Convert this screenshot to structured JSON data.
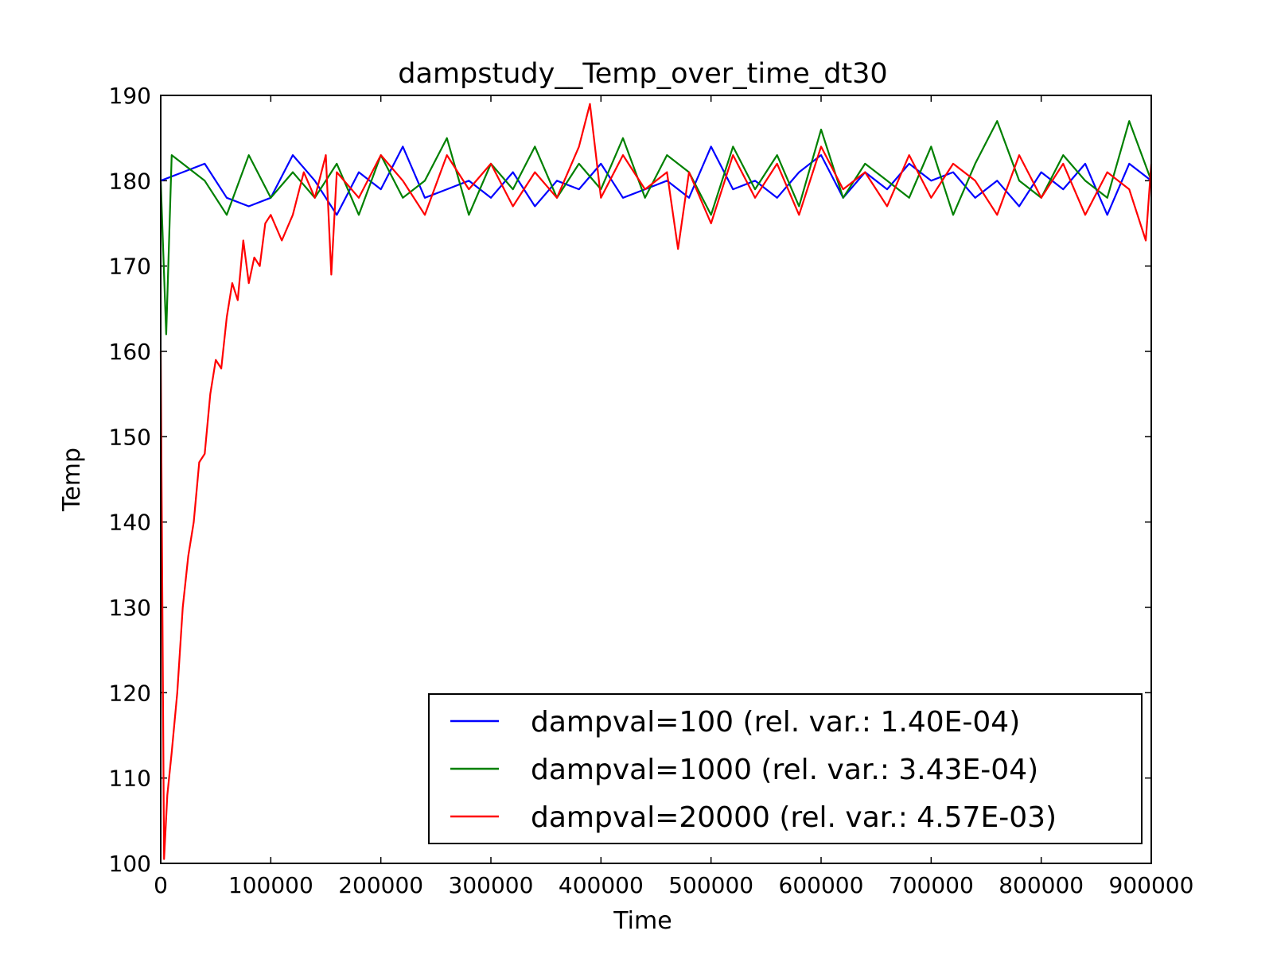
{
  "chart_data": {
    "type": "line",
    "title": "dampstudy__Temp_over_time_dt30",
    "xlabel": "Time",
    "ylabel": "Temp",
    "xlim": [
      0,
      900000
    ],
    "ylim": [
      100,
      190
    ],
    "xticks": [
      0,
      100000,
      200000,
      300000,
      400000,
      500000,
      600000,
      700000,
      800000,
      900000
    ],
    "xtick_labels": [
      "0",
      "100000",
      "200000",
      "300000",
      "400000",
      "500000",
      "600000",
      "700000",
      "800000",
      "900000"
    ],
    "yticks": [
      100,
      110,
      120,
      130,
      140,
      150,
      160,
      170,
      180,
      190
    ],
    "ytick_labels": [
      "100",
      "110",
      "120",
      "130",
      "140",
      "150",
      "160",
      "170",
      "180",
      "190"
    ],
    "grid": false,
    "legend_position": "lower-right",
    "series": [
      {
        "name": "dampval=100 (rel. var.: 1.40E-04)",
        "color": "#0000ff",
        "x": [
          0,
          20000,
          40000,
          60000,
          80000,
          100000,
          120000,
          140000,
          160000,
          180000,
          200000,
          220000,
          240000,
          260000,
          280000,
          300000,
          320000,
          340000,
          360000,
          380000,
          400000,
          420000,
          440000,
          460000,
          480000,
          500000,
          520000,
          540000,
          560000,
          580000,
          600000,
          620000,
          640000,
          660000,
          680000,
          700000,
          720000,
          740000,
          760000,
          780000,
          800000,
          820000,
          840000,
          860000,
          880000,
          900000
        ],
        "y": [
          180,
          181,
          182,
          178,
          177,
          178,
          183,
          180,
          176,
          181,
          179,
          184,
          178,
          179,
          180,
          178,
          181,
          177,
          180,
          179,
          182,
          178,
          179,
          180,
          178,
          184,
          179,
          180,
          178,
          181,
          183,
          178,
          181,
          179,
          182,
          180,
          181,
          178,
          180,
          177,
          181,
          179,
          182,
          176,
          182,
          180
        ]
      },
      {
        "name": "dampval=1000 (rel. var.: 3.43E-04)",
        "color": "#008000",
        "x": [
          0,
          5000,
          10000,
          20000,
          40000,
          60000,
          80000,
          100000,
          120000,
          140000,
          160000,
          180000,
          200000,
          220000,
          240000,
          260000,
          280000,
          300000,
          320000,
          340000,
          360000,
          380000,
          400000,
          420000,
          440000,
          460000,
          480000,
          500000,
          520000,
          540000,
          560000,
          580000,
          600000,
          620000,
          640000,
          660000,
          680000,
          700000,
          720000,
          740000,
          760000,
          780000,
          800000,
          820000,
          840000,
          860000,
          880000,
          900000
        ],
        "y": [
          180,
          162,
          183,
          182,
          180,
          176,
          183,
          178,
          181,
          178,
          182,
          176,
          183,
          178,
          180,
          185,
          176,
          182,
          179,
          184,
          178,
          182,
          179,
          185,
          178,
          183,
          181,
          176,
          184,
          179,
          183,
          177,
          186,
          178,
          182,
          180,
          178,
          184,
          176,
          182,
          187,
          180,
          178,
          183,
          180,
          178,
          187,
          180
        ]
      },
      {
        "name": "dampval=20000 (rel. var.: 4.57E-03)",
        "color": "#ff0000",
        "x": [
          0,
          3000,
          6000,
          10000,
          15000,
          20000,
          25000,
          30000,
          35000,
          40000,
          45000,
          50000,
          55000,
          60000,
          65000,
          70000,
          75000,
          80000,
          85000,
          90000,
          95000,
          100000,
          110000,
          120000,
          130000,
          140000,
          150000,
          155000,
          160000,
          180000,
          200000,
          220000,
          240000,
          260000,
          280000,
          300000,
          320000,
          340000,
          360000,
          380000,
          390000,
          400000,
          420000,
          440000,
          460000,
          470000,
          480000,
          500000,
          520000,
          540000,
          560000,
          580000,
          600000,
          620000,
          640000,
          660000,
          680000,
          700000,
          720000,
          740000,
          760000,
          780000,
          800000,
          820000,
          840000,
          860000,
          880000,
          895000,
          900000
        ],
        "y": [
          160,
          100.5,
          108,
          113,
          120,
          130,
          136,
          140,
          147,
          148,
          155,
          159,
          158,
          164,
          168,
          166,
          173,
          168,
          171,
          170,
          175,
          176,
          173,
          176,
          181,
          178,
          183,
          169,
          181,
          178,
          183,
          180,
          176,
          183,
          179,
          182,
          177,
          181,
          178,
          184,
          189,
          178,
          183,
          179,
          181,
          172,
          181,
          175,
          183,
          178,
          182,
          176,
          184,
          179,
          181,
          177,
          183,
          178,
          182,
          180,
          176,
          183,
          178,
          182,
          176,
          181,
          179,
          173,
          182
        ]
      }
    ]
  }
}
